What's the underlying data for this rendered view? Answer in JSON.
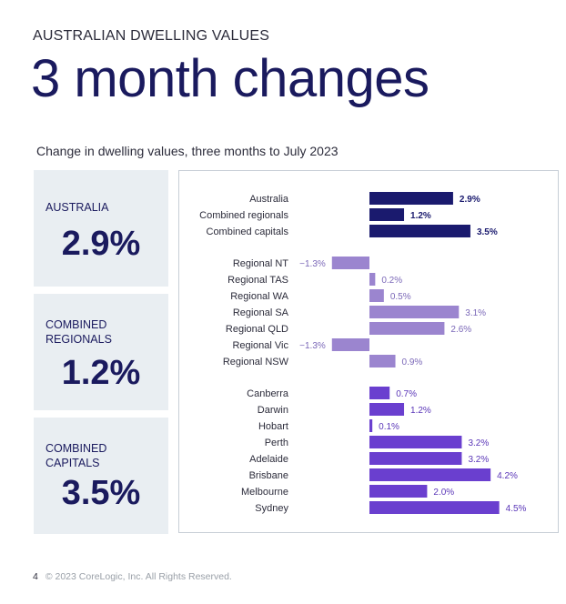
{
  "header": {
    "eyebrow": "AUSTRALIAN DWELLING VALUES",
    "title": "3 month changes",
    "subtitle": "Change in dwelling values, three months to July 2023"
  },
  "kpis": [
    {
      "label": "AUSTRALIA",
      "value": "2.9%"
    },
    {
      "label": "COMBINED REGIONALS",
      "value": "1.2%"
    },
    {
      "label": "COMBINED CAPITALS",
      "value": "3.5%"
    }
  ],
  "colors": {
    "aggregate": "#1a1a6e",
    "regional": "#9b85cf",
    "capital": "#6a3fcf",
    "regional_label": "#7b68b8",
    "capital_label": "#5a36b8",
    "aggregate_label": "#1a1a6e"
  },
  "chart_data": {
    "type": "bar",
    "orientation": "horizontal",
    "title": "Change in dwelling values, three months to July 2023",
    "xlim": [
      -1.3,
      4.5
    ],
    "groups": [
      {
        "name": "aggregate",
        "categories": [
          "Australia",
          "Combined regionals",
          "Combined capitals"
        ],
        "values": [
          2.9,
          1.2,
          3.5
        ],
        "labels": [
          "2.9%",
          "1.2%",
          "3.5%"
        ]
      },
      {
        "name": "regional",
        "categories": [
          "Regional NT",
          "Regional TAS",
          "Regional WA",
          "Regional SA",
          "Regional QLD",
          "Regional Vic",
          "Regional NSW"
        ],
        "values": [
          -1.3,
          0.2,
          0.5,
          3.1,
          2.6,
          -1.3,
          0.9
        ],
        "labels": [
          "−1.3%",
          "0.2%",
          "0.5%",
          "3.1%",
          "2.6%",
          "−1.3%",
          "0.9%"
        ]
      },
      {
        "name": "capital",
        "categories": [
          "Canberra",
          "Darwin",
          "Hobart",
          "Perth",
          "Adelaide",
          "Brisbane",
          "Melbourne",
          "Sydney"
        ],
        "values": [
          0.7,
          1.2,
          0.1,
          3.2,
          3.2,
          4.2,
          2.0,
          4.5
        ],
        "labels": [
          "0.7%",
          "1.2%",
          "0.1%",
          "3.2%",
          "3.2%",
          "4.2%",
          "2.0%",
          "4.5%"
        ]
      }
    ]
  },
  "footer": {
    "page": "4",
    "copyright": "© 2023 CoreLogic, Inc. All Rights Reserved."
  }
}
